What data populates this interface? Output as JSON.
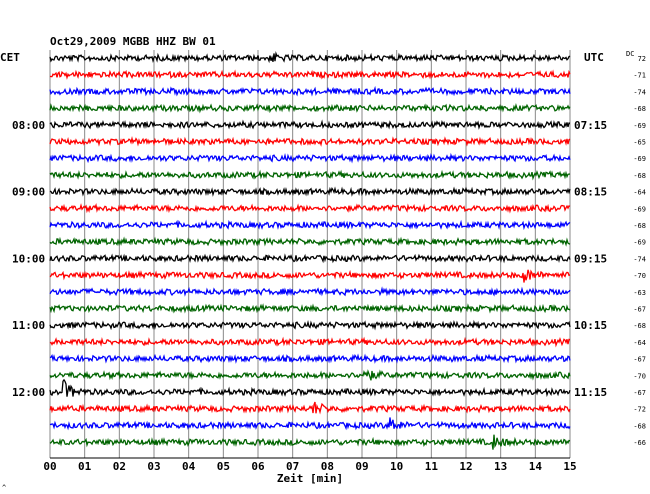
{
  "chart_data": {
    "type": "line",
    "title": "Oct29,2009   MGBB HHZ BW 01",
    "left_timezone": "CET",
    "right_timezone": "UTC",
    "dc_label": "DC",
    "xlabel": "Zeit [min]",
    "xlim": [
      0,
      15
    ],
    "x_ticks": [
      "00",
      "01",
      "02",
      "03",
      "04",
      "05",
      "06",
      "07",
      "08",
      "09",
      "10",
      "11",
      "12",
      "13",
      "14",
      "15"
    ],
    "trace_colors": [
      "#000000",
      "#ff0000",
      "#0000ff",
      "#006400"
    ],
    "hour_labels_left": [
      {
        "row": 4,
        "text": "08:00"
      },
      {
        "row": 8,
        "text": "09:00"
      },
      {
        "row": 12,
        "text": "10:00"
      },
      {
        "row": 16,
        "text": "11:00"
      },
      {
        "row": 20,
        "text": "12:00"
      }
    ],
    "hour_labels_right": [
      {
        "row": 4,
        "text": "07:15"
      },
      {
        "row": 8,
        "text": "08:15"
      },
      {
        "row": 12,
        "text": "09:15"
      },
      {
        "row": 16,
        "text": "10:15"
      },
      {
        "row": 20,
        "text": "11:15"
      }
    ],
    "dc_offsets": [
      "72",
      "-71",
      "-74",
      "-68",
      "-69",
      "-65",
      "-69",
      "-68",
      "-64",
      "-69",
      "-68",
      "-69",
      "-74",
      "-70",
      "-63",
      "-67",
      "-68",
      "-64",
      "-67",
      "-70",
      "-67",
      "-72",
      "-68",
      "-66"
    ],
    "events": [
      {
        "row": 0,
        "minute": 6.4,
        "amplitude": 1.6
      },
      {
        "row": 13,
        "minute": 13.7,
        "amplitude": 2.6
      },
      {
        "row": 19,
        "minute": 9.1,
        "amplitude": 2.2
      },
      {
        "row": 20,
        "minute": 0.4,
        "amplitude": 4.0
      },
      {
        "row": 21,
        "minute": 7.6,
        "amplitude": 2.4
      },
      {
        "row": 22,
        "minute": 9.8,
        "amplitude": 3.0
      },
      {
        "row": 23,
        "minute": 12.8,
        "amplitude": 2.4
      }
    ],
    "corner_mark": "^"
  }
}
